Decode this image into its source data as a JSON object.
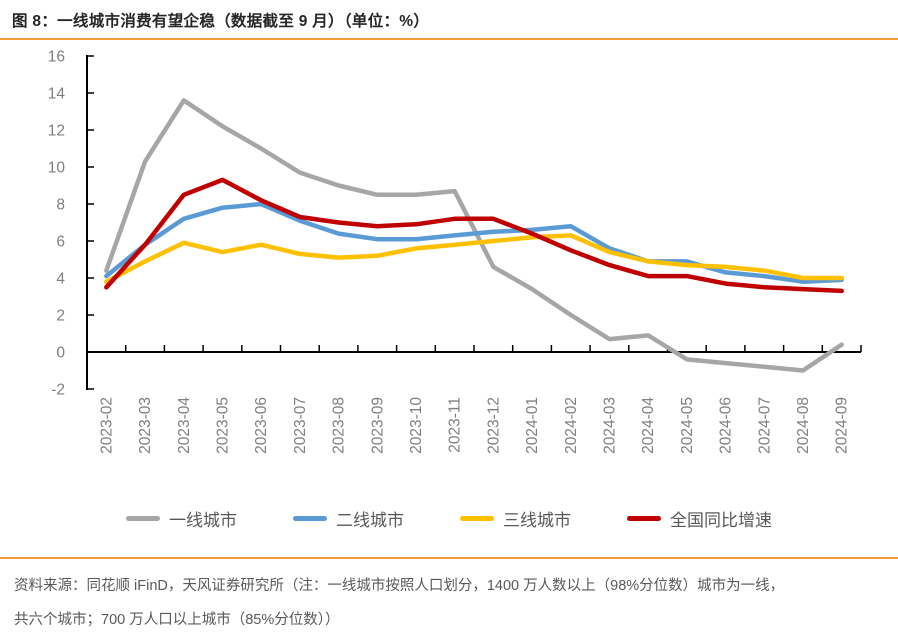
{
  "title": "图 8：一线城市消费有望企稳（数据截至 9 月）（单位：%）",
  "theme": {
    "accent_color": "#EE9B3A",
    "title_color": "#262626",
    "axis_label_color": "#7F7F7F",
    "body_text_color": "#595959",
    "background": "#FFFFFF"
  },
  "chart_data": {
    "type": "line",
    "title": "图 8：一线城市消费有望企稳（数据截至 9 月）（单位：%）",
    "unit": "%",
    "categories": [
      "2023-02",
      "2023-03",
      "2023-04",
      "2023-05",
      "2023-06",
      "2023-07",
      "2023-08",
      "2023-09",
      "2023-10",
      "2023-11",
      "2023-12",
      "2024-01",
      "2024-02",
      "2024-03",
      "2024-04",
      "2024-05",
      "2024-06",
      "2024-07",
      "2024-08",
      "2024-09"
    ],
    "series": [
      {
        "name": "一线城市",
        "color": "#A6A6A6",
        "values": [
          4.4,
          10.3,
          13.6,
          12.2,
          11.0,
          9.7,
          9.0,
          8.5,
          8.5,
          8.7,
          4.6,
          3.4,
          2.0,
          0.7,
          0.9,
          -0.4,
          -0.6,
          -0.8,
          -1.0,
          0.4
        ]
      },
      {
        "name": "二线城市",
        "color": "#5B9BD5",
        "values": [
          4.1,
          5.8,
          7.2,
          7.8,
          8.0,
          7.1,
          6.4,
          6.1,
          6.1,
          6.3,
          6.5,
          6.6,
          6.8,
          5.6,
          4.9,
          4.9,
          4.3,
          4.1,
          3.8,
          3.9
        ]
      },
      {
        "name": "三线城市",
        "color": "#FFC000",
        "values": [
          3.8,
          4.9,
          5.9,
          5.4,
          5.8,
          5.3,
          5.1,
          5.2,
          5.6,
          5.8,
          6.0,
          6.2,
          6.3,
          5.4,
          4.9,
          4.7,
          4.6,
          4.4,
          4.0,
          4.0
        ]
      },
      {
        "name": "全国同比增速",
        "color": "#C00000",
        "values": [
          3.5,
          5.8,
          8.5,
          9.3,
          8.2,
          7.3,
          7.0,
          6.8,
          6.9,
          7.2,
          7.2,
          6.4,
          5.5,
          4.7,
          4.1,
          4.1,
          3.7,
          3.5,
          3.4,
          3.3
        ]
      }
    ],
    "ylim": [
      -2,
      16
    ],
    "ytick_step": 2,
    "axis_color": "#000000",
    "grid": false,
    "legend_position": "bottom",
    "xlabel": "",
    "ylabel": ""
  },
  "footer": {
    "line1": "资料来源：同花顺 iFinD，天风证券研究所（注：一线城市按照人口划分，1400 万人数以上（98%分位数）城市为一线，",
    "line2": "共六个城市；700 万人口以上城市（85%分位数））"
  }
}
